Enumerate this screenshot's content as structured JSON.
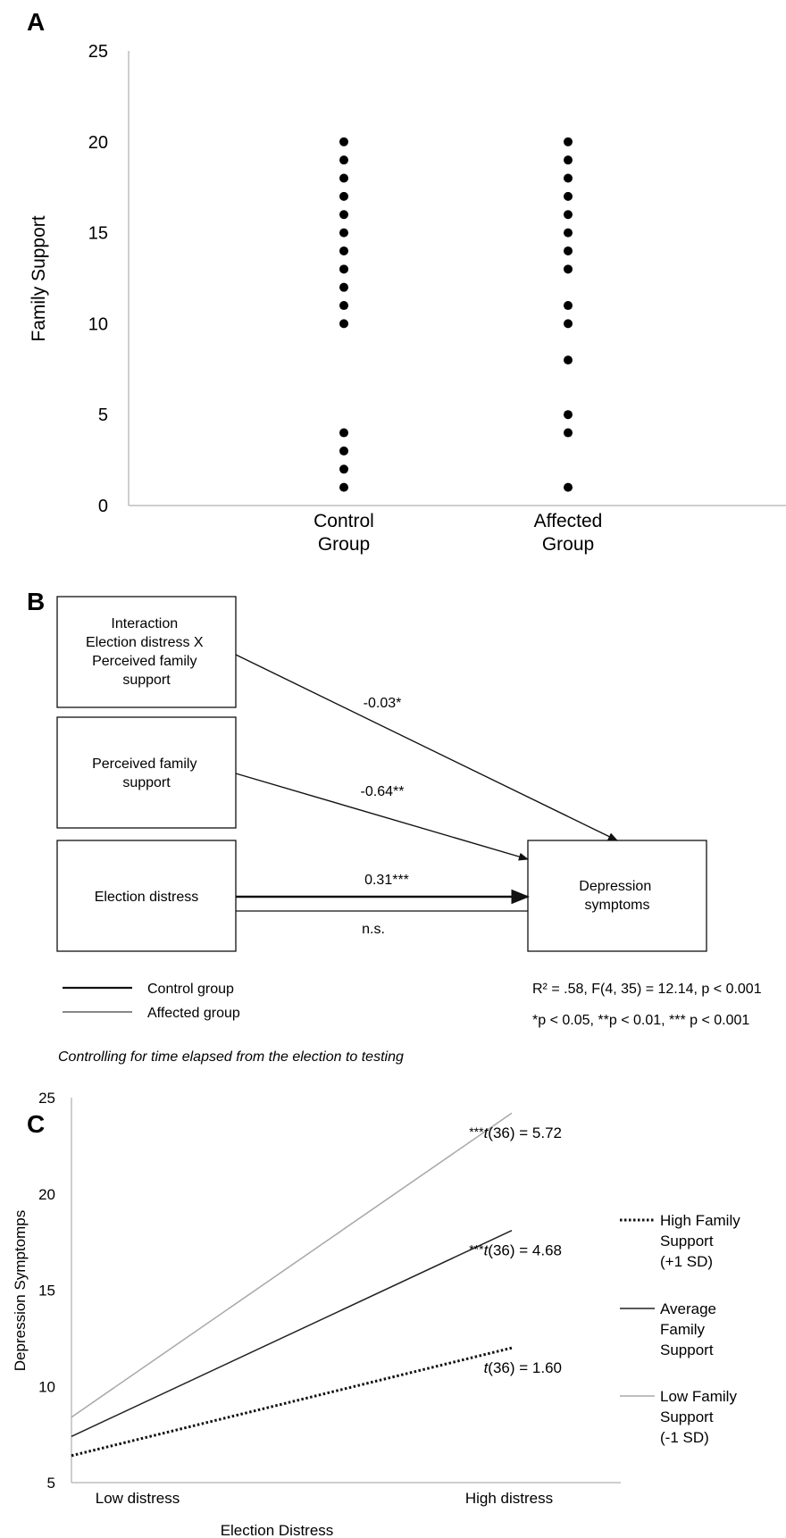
{
  "panels": {
    "A": {
      "letter": "A",
      "chart_data": {
        "type": "scatter",
        "categories": [
          "Control\nGroup",
          "Affected\nGroup"
        ],
        "ylabel": "Family Support",
        "xlabel": "",
        "ylim": [
          0,
          25
        ],
        "yticks": [
          "0",
          "5",
          "10",
          "15",
          "20",
          "25"
        ],
        "grid": false,
        "series": [
          {
            "category": "Control\nGroup",
            "values": [
              20,
              19,
              18,
              17,
              16,
              15,
              14,
              13,
              12,
              11,
              10,
              4,
              3,
              2,
              1
            ]
          },
          {
            "category": "Affected\nGroup",
            "values": [
              20,
              19,
              18,
              17,
              16,
              15,
              14,
              13,
              11,
              10,
              8,
              5,
              4,
              1
            ]
          }
        ]
      }
    },
    "B": {
      "letter": "B",
      "boxes": {
        "interaction": [
          "Interaction",
          "Election distress X",
          "Perceived family",
          "support"
        ],
        "family": [
          "Perceived family",
          "support"
        ],
        "distress": [
          "Election distress"
        ],
        "depression": [
          "Depression",
          "symptoms"
        ]
      },
      "coefficients": {
        "interaction": "-0.03*",
        "family": "-0.64**",
        "distress_control": "0.31***",
        "distress_affected": "n.s."
      },
      "legend": {
        "control": "Control group",
        "affected": "Affected group"
      },
      "stats": {
        "model_fit": "R² = .58, F(4, 35) = 12.14, p < 0.001",
        "significance": "*p < 0.05, **p < 0.01, *** p < 0.001"
      },
      "note": "Controlling for time elapsed from the election to testing"
    },
    "C": {
      "letter": "C",
      "chart_data": {
        "type": "line",
        "x": [
          "Low distress",
          "High distress"
        ],
        "xlabel": "Election Distress",
        "ylabel": "Depression Symptomps",
        "ylim": [
          5,
          25
        ],
        "yticks": [
          "5",
          "10",
          "15",
          "20",
          "25"
        ],
        "grid": false,
        "legend_position": "right",
        "series": [
          {
            "name": "High Family Support (+1 SD)",
            "values": [
              6.4,
              12.0
            ],
            "style": "dotted",
            "color": "#111111",
            "annotation": "t(36) = 1.60",
            "stars": ""
          },
          {
            "name": "Average Family Support",
            "values": [
              7.4,
              18.1
            ],
            "style": "solid",
            "color": "#222222",
            "annotation": "t(36) = 4.68",
            "stars": "***"
          },
          {
            "name": "Low Family Support (-1 SD)",
            "values": [
              8.4,
              24.2
            ],
            "style": "solid",
            "color": "#a8a8a8",
            "annotation": "t(36) = 5.72",
            "stars": "***"
          }
        ],
        "legend_lines": [
          [
            "High Family",
            "Support",
            "(+1 SD)"
          ],
          [
            "Average",
            "Family",
            "Support"
          ],
          [
            "Low Family",
            "Support",
            "(-1 SD)"
          ]
        ]
      }
    }
  }
}
